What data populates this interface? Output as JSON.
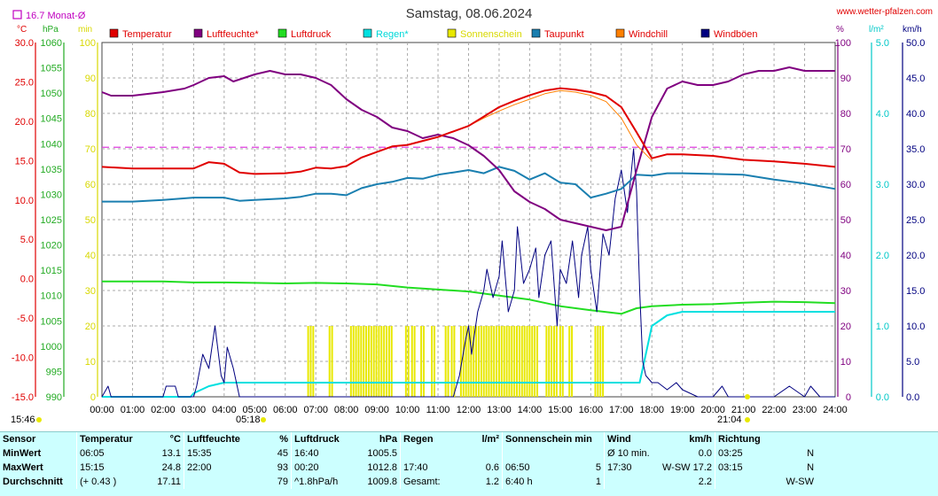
{
  "title": "Samstag, 08.06.2024",
  "site": "www.wetter-pfalzen.com",
  "monat_label": "16.7 Monat-Ø",
  "monat_value": 16.7,
  "times": {
    "sunrise": "05:18",
    "sunset": "21:04"
  },
  "legend": [
    {
      "name": "Temperatur",
      "color": "#e00000"
    },
    {
      "name": "Luftfeuchte*",
      "color": "#800080"
    },
    {
      "name": "Luftdruck",
      "color": "#22dd22"
    },
    {
      "name": "Regen*",
      "color": "#00e0e0"
    },
    {
      "name": "Sonnenschein",
      "color": "#e8e800"
    },
    {
      "name": "Taupunkt",
      "color": "#1a7fb0"
    },
    {
      "name": "Windchill",
      "color": "#ff8000"
    },
    {
      "name": "Windböen",
      "color": "#000080"
    }
  ],
  "axes": {
    "temp": {
      "unit": "°C",
      "ticks": [
        "30.0",
        "25.0",
        "20.0",
        "15.0",
        "10.0",
        "5.0",
        "0.0",
        "-5.0",
        "-10.0",
        "-15.0"
      ]
    },
    "pressure": {
      "unit": "hPa",
      "ticks": [
        "1060",
        "1055",
        "1050",
        "1045",
        "1040",
        "1035",
        "1030",
        "1025",
        "1020",
        "1015",
        "1010",
        "1005",
        "1000",
        "995",
        "990"
      ]
    },
    "minutes": {
      "unit": "min",
      "ticks": [
        "100",
        "90",
        "80",
        "70",
        "60",
        "50",
        "40",
        "30",
        "20",
        "10",
        "0"
      ]
    },
    "humidity": {
      "unit": "%",
      "ticks": [
        "100",
        "90",
        "80",
        "70",
        "60",
        "50",
        "40",
        "30",
        "20",
        "10",
        "0"
      ]
    },
    "rain": {
      "unit": "l/m²",
      "ticks": [
        "5.0",
        "4.0",
        "3.0",
        "2.0",
        "1.0",
        "0.0"
      ]
    },
    "wind": {
      "unit": "km/h",
      "ticks": [
        "50.0",
        "45.0",
        "40.0",
        "35.0",
        "30.0",
        "25.0",
        "20.0",
        "15.0",
        "10.0",
        "5.0",
        "0.0"
      ]
    },
    "x": {
      "ticks": [
        "00:00",
        "01:00",
        "02:00",
        "03:00",
        "04:00",
        "05:00",
        "06:00",
        "07:00",
        "08:00",
        "09:00",
        "10:00",
        "11:00",
        "12:00",
        "13:00",
        "14:00",
        "15:00",
        "16:00",
        "17:00",
        "18:00",
        "19:00",
        "20:00",
        "21:00",
        "22:00",
        "23:00",
        "24:00"
      ]
    }
  },
  "chart_data": {
    "type": "line",
    "title": "Samstag, 08.06.2024",
    "x_unit": "hour of day",
    "xlim": [
      0,
      24
    ],
    "grid": true,
    "legend_position": "top",
    "reference_line": {
      "name": "16.7 Monat-Ø",
      "value": 16.7,
      "axis": "temp",
      "color": "#e040e0"
    },
    "series": [
      {
        "name": "Temperatur",
        "axis": "temp",
        "ylim": [
          -15,
          30
        ],
        "color": "#e00000",
        "x": [
          0,
          1,
          2,
          3,
          3.5,
          4,
          4.5,
          5,
          6,
          6.5,
          7,
          7.5,
          8,
          8.5,
          9,
          9.5,
          10,
          10.5,
          11,
          11.5,
          12,
          12.5,
          13,
          13.5,
          14,
          14.5,
          15,
          15.5,
          16,
          16.5,
          17,
          17.5,
          18,
          18.5,
          19,
          20,
          21,
          22,
          23,
          24
        ],
        "y": [
          14.2,
          14.0,
          14.0,
          14.0,
          14.8,
          14.6,
          13.5,
          13.3,
          13.4,
          13.6,
          14.1,
          14.0,
          14.3,
          15.4,
          16.1,
          16.8,
          17.0,
          17.5,
          18.0,
          18.7,
          19.4,
          20.6,
          21.8,
          22.6,
          23.3,
          23.9,
          24.2,
          24.0,
          23.7,
          23.2,
          21.8,
          18.6,
          15.3,
          15.8,
          15.8,
          15.6,
          15.1,
          14.9,
          14.6,
          14.2
        ]
      },
      {
        "name": "Windchill",
        "axis": "temp",
        "ylim": [
          -15,
          30
        ],
        "color": "#ff8000",
        "x": [
          12,
          12.5,
          13,
          13.5,
          14,
          14.5,
          15,
          15.5,
          16,
          16.5,
          17,
          17.5,
          18
        ],
        "y": [
          19.4,
          20.4,
          21.3,
          22.1,
          22.8,
          23.5,
          23.9,
          23.7,
          23.3,
          22.5,
          20.4,
          17.0,
          15.0
        ]
      },
      {
        "name": "Taupunkt",
        "axis": "temp",
        "ylim": [
          -15,
          30
        ],
        "color": "#1a7fb0",
        "x": [
          0,
          1,
          2,
          3,
          4,
          4.5,
          5,
          6,
          6.5,
          7,
          7.5,
          8,
          8.5,
          9,
          9.5,
          10,
          10.5,
          11,
          11.5,
          12,
          12.5,
          13,
          13.5,
          14,
          14.5,
          15,
          15.5,
          16,
          16.5,
          17,
          17.5,
          18,
          18.5,
          19,
          20,
          21,
          22,
          23,
          24
        ],
        "y": [
          9.8,
          9.8,
          10.0,
          10.3,
          10.3,
          9.9,
          10.0,
          10.2,
          10.4,
          10.8,
          10.8,
          10.6,
          11.5,
          12.0,
          12.3,
          12.8,
          12.7,
          13.2,
          13.5,
          13.8,
          13.4,
          14.2,
          13.7,
          12.6,
          13.4,
          12.2,
          12.0,
          10.3,
          10.8,
          11.4,
          13.2,
          13.1,
          13.4,
          13.4,
          13.3,
          13.2,
          12.6,
          12.1,
          11.4
        ]
      },
      {
        "name": "Luftfeuchte*",
        "axis": "humidity",
        "ylim": [
          0,
          100
        ],
        "color": "#800080",
        "x": [
          0,
          0.3,
          1,
          2,
          2.7,
          3,
          3.5,
          4,
          4.3,
          5,
          5.5,
          6,
          6.5,
          7,
          7.5,
          8,
          8.5,
          9,
          9.5,
          10,
          10.5,
          11,
          11.5,
          12,
          12.5,
          13,
          13.5,
          14,
          14.5,
          15,
          15.5,
          16,
          16.5,
          17,
          17.5,
          18,
          18.5,
          19,
          19.5,
          20,
          20.5,
          21,
          21.5,
          22,
          22.5,
          23,
          24
        ],
        "y": [
          86,
          85,
          85,
          86,
          87,
          88,
          90,
          90.5,
          89,
          91,
          92,
          91,
          91,
          90,
          88,
          84,
          81,
          79,
          76,
          75,
          73,
          74,
          73,
          71,
          68,
          64,
          58,
          55,
          53,
          50,
          49,
          48,
          47,
          48,
          64,
          79,
          87,
          89,
          88,
          88,
          89,
          91,
          92,
          92,
          93,
          92,
          92
        ]
      },
      {
        "name": "Luftdruck",
        "axis": "pressure",
        "ylim": [
          990,
          1060
        ],
        "color": "#22dd22",
        "x": [
          0,
          1,
          2,
          3,
          4,
          5,
          6,
          7,
          8,
          9,
          10,
          11,
          12,
          13,
          14,
          15,
          16,
          17,
          17.5,
          18,
          19,
          20,
          21,
          22,
          23,
          24
        ],
        "y": [
          1012.8,
          1012.8,
          1012.8,
          1012.6,
          1012.6,
          1012.5,
          1012.4,
          1012.5,
          1012.4,
          1012.2,
          1011.6,
          1011.2,
          1010.8,
          1010.0,
          1009.2,
          1007.9,
          1007.1,
          1006.4,
          1007.5,
          1007.9,
          1008.2,
          1008.3,
          1008.6,
          1008.8,
          1008.7,
          1008.5
        ]
      },
      {
        "name": "Regen*",
        "axis": "rain",
        "ylim": [
          0,
          5
        ],
        "color": "#00e0e0",
        "x": [
          0,
          2.9,
          3,
          3.5,
          4,
          5,
          10,
          15,
          17.6,
          17.8,
          18,
          18.5,
          19,
          20,
          21,
          24
        ],
        "y": [
          0,
          0,
          0.05,
          0.15,
          0.2,
          0.2,
          0.2,
          0.2,
          0.2,
          0.6,
          1.0,
          1.15,
          1.2,
          1.2,
          1.2,
          1.2
        ]
      },
      {
        "name": "Windböen",
        "axis": "wind",
        "ylim": [
          0,
          50
        ],
        "color": "#000080",
        "x": [
          0,
          0.2,
          0.3,
          0.4,
          2,
          2.1,
          2.4,
          2.5,
          3,
          3.1,
          3.3,
          3.5,
          3.7,
          3.9,
          4.0,
          4.1,
          4.3,
          4.5,
          11.5,
          11.7,
          11.9,
          12.0,
          12.1,
          12.3,
          12.5,
          12.6,
          12.8,
          13.0,
          13.1,
          13.3,
          13.5,
          13.6,
          13.8,
          14.0,
          14.2,
          14.3,
          14.5,
          14.7,
          14.9,
          15.0,
          15.2,
          15.4,
          15.6,
          15.7,
          15.9,
          16.0,
          16.2,
          16.4,
          16.6,
          16.8,
          17.0,
          17.2,
          17.4,
          17.5,
          17.6,
          17.7,
          17.8,
          18.0,
          18.2,
          18.5,
          18.8,
          19.0,
          19.5,
          20.0,
          20.3,
          20.5,
          21.0,
          22.0,
          22.5,
          23.0,
          23.2,
          23.5,
          24.0
        ],
        "y": [
          0,
          1.5,
          0,
          0,
          0,
          1.5,
          1.5,
          0,
          0,
          1.5,
          6,
          4,
          10,
          3,
          2,
          7,
          4,
          0,
          0,
          3,
          8,
          10,
          6,
          12,
          15,
          18,
          14,
          17,
          22,
          12,
          15,
          24,
          16,
          18,
          21,
          14,
          20,
          22,
          10,
          18,
          16,
          22,
          14,
          20,
          24,
          18,
          12,
          23,
          20,
          28,
          32,
          26,
          35,
          29,
          15,
          5,
          3,
          2,
          2,
          1,
          2,
          1,
          0,
          0,
          1.5,
          0,
          0,
          0,
          1.5,
          0,
          1.5,
          0,
          0
        ]
      }
    ],
    "sunshine_minutes": {
      "name": "Sonnenschein",
      "axis": "minutes",
      "ylim": [
        0,
        100
      ],
      "color": "#e8e800",
      "intervals": [
        [
          6.75,
          6.95
        ],
        [
          7.45,
          7.6
        ],
        [
          8.15,
          9.55
        ],
        [
          9.95,
          10.05
        ],
        [
          10.15,
          10.25
        ],
        [
          10.45,
          10.6
        ],
        [
          10.8,
          10.95
        ],
        [
          11.25,
          11.4
        ],
        [
          11.45,
          11.55
        ],
        [
          11.75,
          14.3
        ],
        [
          14.55,
          14.9
        ],
        [
          15.0,
          15.1
        ],
        [
          15.3,
          15.45
        ],
        [
          16.15,
          16.45
        ]
      ],
      "value": 5
    }
  },
  "stats": {
    "headers": [
      "Sensor",
      "Temperatur",
      "°C",
      "Luftfeuchte",
      "%",
      "Luftdruck",
      "hPa",
      "Regen",
      "l/m²",
      "Sonnenschein min",
      "Wind",
      "km/h",
      "Richtung"
    ],
    "rows": [
      {
        "label": "MinWert",
        "t_time": "06:05",
        "t_val": "13.1",
        "h_time": "15:35",
        "h_val": "45",
        "p_time": "16:40",
        "p_val": "1005.5",
        "r_time": "",
        "r_val": "",
        "s_time": "",
        "s_val": "",
        "w_time": "Ø 10 min.",
        "w_val": "0.0",
        "d_time": "03:25",
        "d_val": "N"
      },
      {
        "label": "MaxWert",
        "t_time": "15:15",
        "t_val": "24.8",
        "h_time": "22:00",
        "h_val": "93",
        "p_time": "00:20",
        "p_val": "1012.8",
        "r_time": "17:40",
        "r_val": "0.6",
        "s_time": "06:50",
        "s_val": "5",
        "w_time": "17:30",
        "w_val": "W-SW 17.2",
        "d_time": "03:15",
        "d_val": "N"
      },
      {
        "label": "Durchschnitt",
        "t_time": "(+ 0.43 )",
        "t_val": "17.11",
        "h_time": "",
        "h_val": "79",
        "p_time": "^1.8hPa/h",
        "p_val": "1009.8",
        "r_time": "Gesamt:",
        "r_val": "1.2",
        "s_time": "6:40 h",
        "s_val": "1",
        "w_time": "",
        "w_val": "2.2",
        "d_time": "",
        "d_val": "W-SW"
      }
    ]
  }
}
